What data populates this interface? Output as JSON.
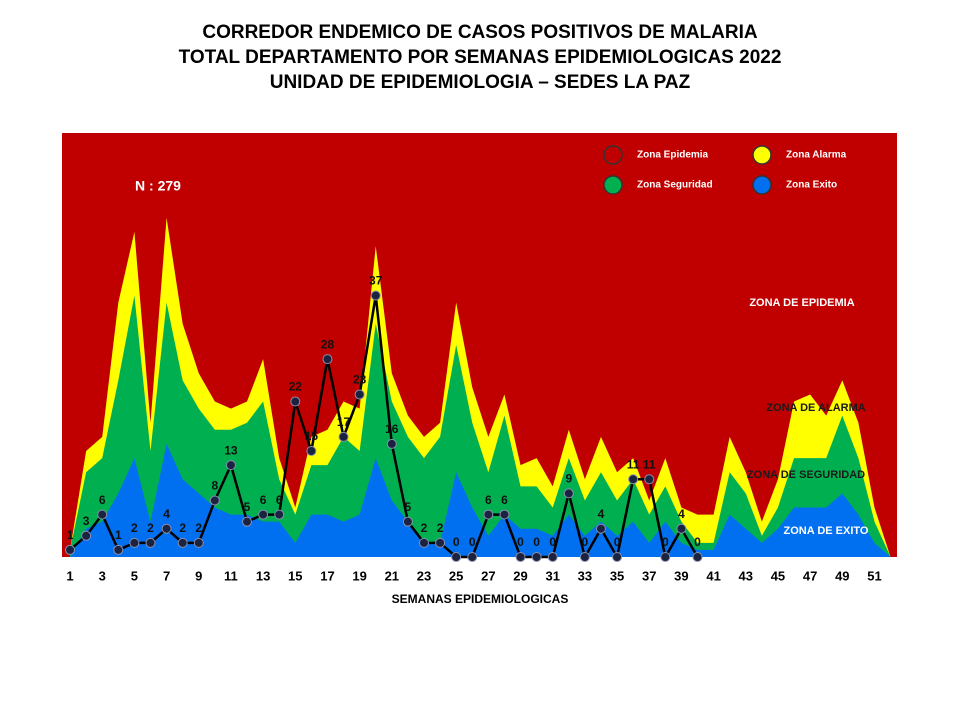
{
  "chart_data": {
    "type": "line",
    "title_lines": [
      "CORREDOR ENDEMICO DE CASOS POSITIVOS DE MALARIA",
      "TOTAL DEPARTAMENTO POR SEMANAS EPIDEMIOLOGICAS 2022",
      "UNIDAD DE EPIDEMIOLOGIA – SEDES LA PAZ"
    ],
    "x_label": "SEMANAS EPIDEMIOLOGICAS",
    "x": [
      1,
      2,
      3,
      4,
      5,
      6,
      7,
      8,
      9,
      10,
      11,
      12,
      13,
      14,
      15,
      16,
      17,
      18,
      19,
      20,
      21,
      22,
      23,
      24,
      25,
      26,
      27,
      28,
      29,
      30,
      31,
      32,
      33,
      34,
      35,
      36,
      37,
      38,
      39,
      40,
      41,
      42,
      43,
      44,
      45,
      46,
      47,
      48,
      49,
      50,
      51,
      52
    ],
    "xlim": [
      0.5,
      52.4
    ],
    "xticks": [
      1,
      3,
      5,
      7,
      9,
      11,
      13,
      15,
      17,
      19,
      21,
      23,
      25,
      27,
      29,
      31,
      33,
      35,
      37,
      39,
      41,
      43,
      45,
      47,
      49,
      51
    ],
    "ylim": [
      0,
      60
    ],
    "zones": [
      {
        "name": "Zona Epidemia",
        "color": "#c00000"
      },
      {
        "name": "Zona Alarma",
        "color": "#ffff00",
        "values": [
          1,
          15,
          17,
          36,
          46,
          19,
          48,
          33,
          26,
          22,
          21,
          22,
          28,
          14,
          7,
          17,
          18,
          22,
          21,
          44,
          26,
          20,
          17,
          19,
          36,
          24,
          17,
          23,
          13,
          14,
          10,
          18,
          11,
          17,
          12,
          14,
          8,
          14,
          7,
          6,
          6,
          17,
          12,
          5,
          11,
          22,
          23,
          20,
          25,
          19,
          7,
          0
        ]
      },
      {
        "name": "Zona Seguridad",
        "color": "#00b050",
        "values": [
          1,
          12,
          14,
          25,
          37,
          15,
          36,
          25,
          21,
          18,
          18,
          19,
          22,
          11,
          6,
          13,
          13,
          17,
          15,
          33,
          22,
          17,
          14,
          17,
          30,
          19,
          12,
          20,
          10,
          10,
          7,
          14,
          8,
          12,
          8,
          11,
          6,
          10,
          5,
          2,
          2,
          12,
          9,
          3,
          7,
          14,
          14,
          14,
          20,
          14,
          5,
          0
        ]
      },
      {
        "name": "Zona Exito",
        "color": "#0070f0",
        "values": [
          0,
          4,
          5,
          9,
          14,
          5,
          16,
          11,
          9,
          7,
          6,
          6,
          5,
          5,
          2,
          6,
          6,
          5,
          6,
          14,
          8,
          5,
          2,
          2,
          12,
          7,
          3,
          6,
          4,
          4,
          3,
          6,
          3,
          5,
          3,
          5,
          2,
          5,
          2,
          1,
          1,
          6,
          4,
          2,
          4,
          7,
          7,
          7,
          9,
          6,
          2,
          0
        ]
      }
    ],
    "series": [
      {
        "color": "#000000",
        "values": [
          1,
          3,
          6,
          1,
          2,
          2,
          4,
          2,
          2,
          8,
          13,
          5,
          6,
          6,
          22,
          15,
          28,
          17,
          23,
          37,
          16,
          5,
          2,
          2,
          0,
          0,
          6,
          6,
          0,
          0,
          0,
          9,
          0,
          4,
          0,
          11,
          11,
          0,
          4,
          0,
          null,
          null,
          null,
          null,
          null,
          null,
          null,
          null,
          null,
          null,
          null,
          null
        ]
      }
    ],
    "annotations": [
      "N : 279",
      "ZONA DE EPIDEMIA",
      "ZONA DE ALARMA",
      "ZONA DE  SEGURIDAD",
      "ZONA DE  EXITO"
    ]
  }
}
